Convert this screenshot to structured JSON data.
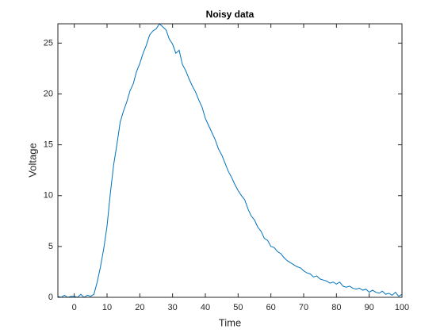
{
  "chart_data": {
    "type": "line",
    "title": "Noisy data",
    "xlabel": "Time",
    "ylabel": "Voltage",
    "x": [
      -5,
      -4,
      -3,
      -2,
      -1,
      0,
      1,
      2,
      3,
      4,
      5,
      6,
      7,
      8,
      9,
      10,
      11,
      12,
      13,
      14,
      15,
      16,
      17,
      18,
      19,
      20,
      21,
      22,
      23,
      24,
      25,
      26,
      27,
      28,
      29,
      30,
      31,
      32,
      33,
      34,
      35,
      36,
      37,
      38,
      39,
      40,
      41,
      42,
      43,
      44,
      45,
      46,
      47,
      48,
      49,
      50,
      51,
      52,
      53,
      54,
      55,
      56,
      57,
      58,
      59,
      60,
      61,
      62,
      63,
      64,
      65,
      66,
      67,
      68,
      69,
      70,
      71,
      72,
      73,
      74,
      75,
      76,
      77,
      78,
      79,
      80,
      81,
      82,
      83,
      84,
      85,
      86,
      87,
      88,
      89,
      90,
      91,
      92,
      93,
      94,
      95,
      96,
      97,
      98,
      99,
      100
    ],
    "series": [
      {
        "color": "#0072bd",
        "values": [
          0.1,
          0,
          0.2,
          0,
          0.1,
          0.1,
          0,
          0.3,
          0,
          0.2,
          0.1,
          0.3,
          1.5,
          3.0,
          4.8,
          7.0,
          10.2,
          13.0,
          15.0,
          17.2,
          18.3,
          19.2,
          20.3,
          21.0,
          22.2,
          23.0,
          24.0,
          24.8,
          25.8,
          26.2,
          26.4,
          26.9,
          26.6,
          26.3,
          25.4,
          24.9,
          24.0,
          24.3,
          22.9,
          22.3,
          21.5,
          20.8,
          20.2,
          19.4,
          18.7,
          17.6,
          16.9,
          16.2,
          15.5,
          14.6,
          14.0,
          13.2,
          12.4,
          11.8,
          11.1,
          10.5,
          10.0,
          9.6,
          8.7,
          8.0,
          7.6,
          6.9,
          6.5,
          5.8,
          5.6,
          5.0,
          4.9,
          4.5,
          4.3,
          3.9,
          3.6,
          3.4,
          3.2,
          3.0,
          2.9,
          2.6,
          2.4,
          2.3,
          2.0,
          2.1,
          1.8,
          1.7,
          1.6,
          1.4,
          1.5,
          1.3,
          1.5,
          1.1,
          1.0,
          1.1,
          0.9,
          0.8,
          0.9,
          0.7,
          0.8,
          0.5,
          0.7,
          0.5,
          0.4,
          0.6,
          0.3,
          0.4,
          0.2,
          0.5,
          0.1,
          0.3
        ]
      }
    ],
    "xlim": [
      -5,
      100
    ],
    "xticks": [
      0,
      10,
      20,
      30,
      40,
      50,
      60,
      70,
      80,
      90,
      100
    ],
    "ylim": [
      0,
      26.9
    ],
    "yticks": [
      0,
      5,
      10,
      15,
      20,
      25
    ]
  }
}
